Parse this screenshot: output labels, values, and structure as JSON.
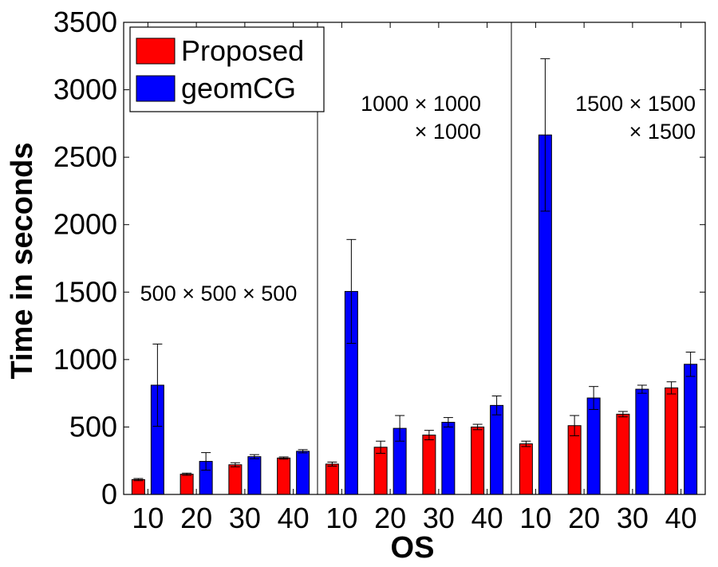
{
  "chart_data": {
    "type": "bar",
    "xlabel": "OS",
    "ylabel": "Time in seconds",
    "ylim": [
      0,
      3500
    ],
    "yticks": [
      0,
      500,
      1000,
      1500,
      2000,
      2500,
      3000,
      3500
    ],
    "categories": [
      "10",
      "20",
      "30",
      "40",
      "10",
      "20",
      "30",
      "40",
      "10",
      "20",
      "30",
      "40"
    ],
    "group_annotations": [
      {
        "lines": [
          "500 × 500 × 500"
        ],
        "group": 0
      },
      {
        "lines": [
          "1000 × 1000",
          "× 1000"
        ],
        "group": 1
      },
      {
        "lines": [
          "1500 × 1500",
          "× 1500"
        ],
        "group": 2
      }
    ],
    "series": [
      {
        "name": "Proposed",
        "color": "#ff0000",
        "values": [
          110,
          150,
          220,
          270,
          225,
          350,
          440,
          500,
          375,
          510,
          595,
          790
        ],
        "errors": [
          8,
          8,
          15,
          8,
          15,
          45,
          35,
          20,
          20,
          75,
          20,
          45
        ]
      },
      {
        "name": "geomCG",
        "color": "#0000ff",
        "values": [
          810,
          245,
          280,
          320,
          1505,
          490,
          535,
          660,
          2665,
          715,
          780,
          965
        ],
        "errors": [
          305,
          65,
          15,
          12,
          385,
          95,
          35,
          70,
          565,
          85,
          30,
          90
        ]
      }
    ],
    "legend": "top-left",
    "grid": false,
    "group_separators": true
  }
}
